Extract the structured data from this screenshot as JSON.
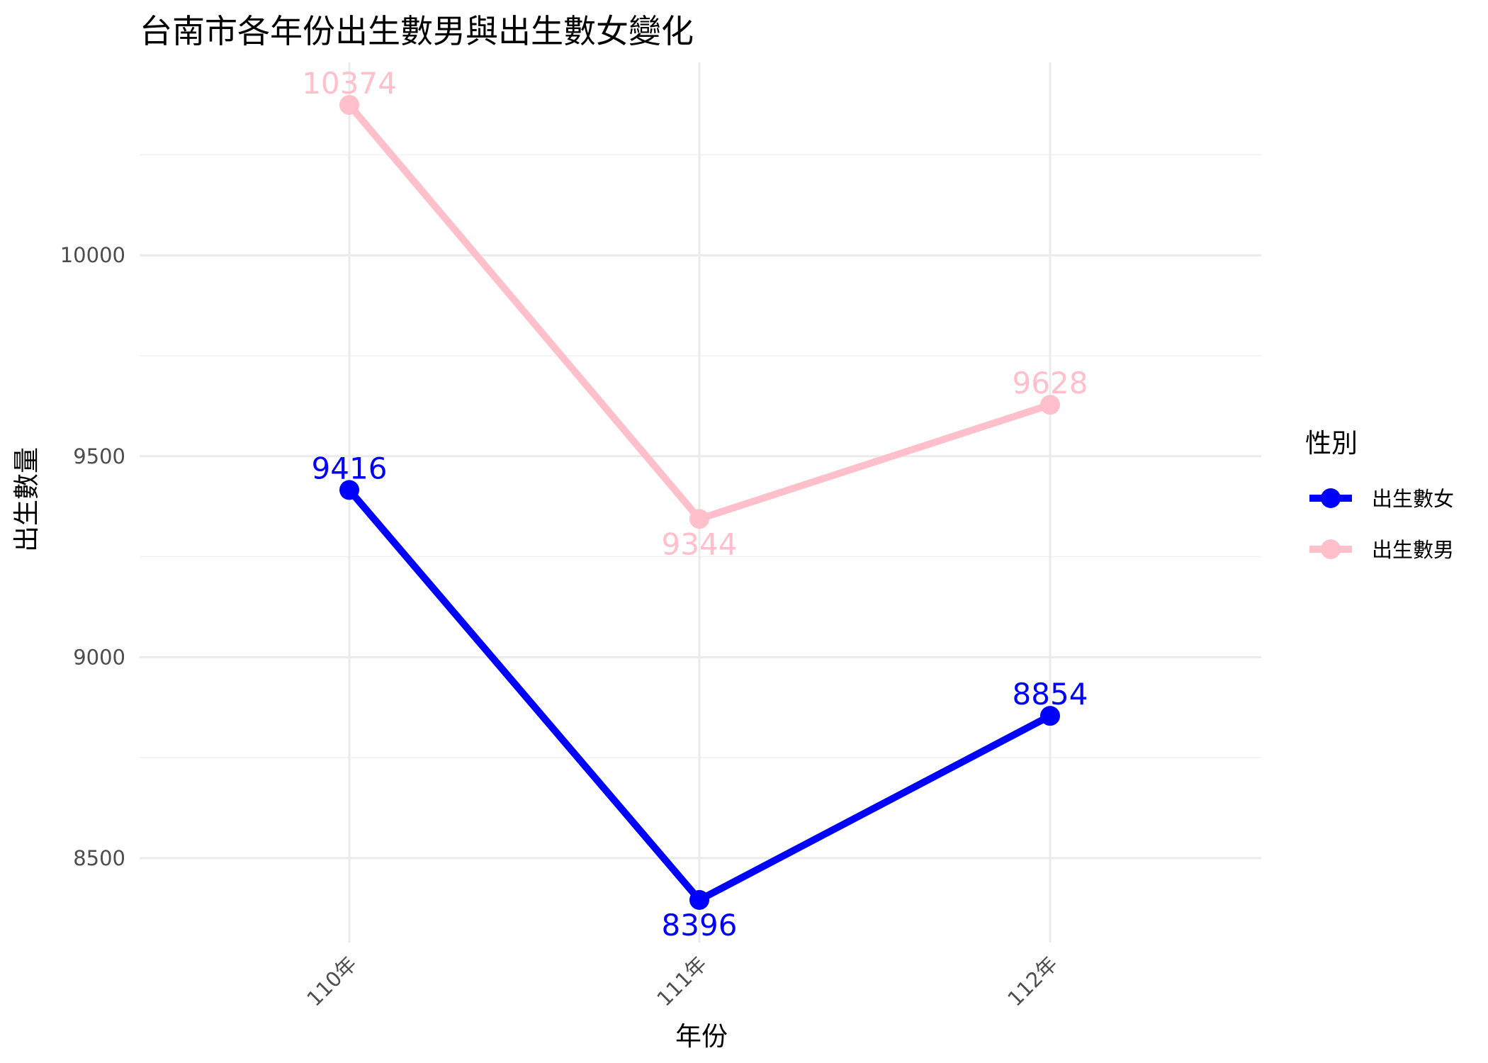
{
  "chart_data": {
    "type": "line",
    "title": "台南市各年份出生數男與出生數女變化",
    "xlabel": "年份",
    "ylabel": "出生數量",
    "categories": [
      "110年",
      "111年",
      "112年"
    ],
    "y_ticks": [
      8500,
      9000,
      9500,
      10000
    ],
    "ylim": [
      8290,
      10480
    ],
    "grid": true,
    "legend": {
      "title": "性別",
      "position": "right"
    },
    "series": [
      {
        "name": "出生數女",
        "color": "#0000FF",
        "values": [
          9416,
          8396,
          8854
        ]
      },
      {
        "name": "出生數男",
        "color": "#FFC0CB",
        "values": [
          10374,
          9344,
          9628
        ]
      }
    ]
  }
}
